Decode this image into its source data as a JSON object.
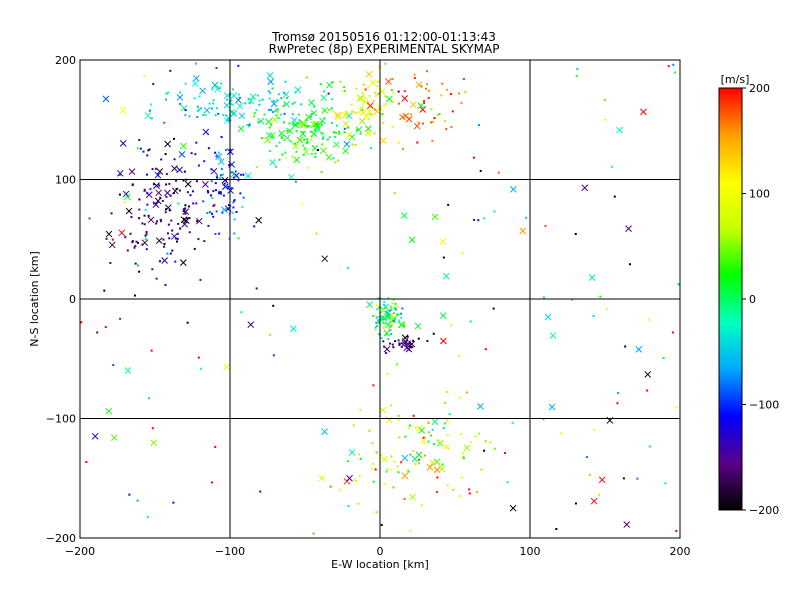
{
  "chart_data": {
    "type": "scatter",
    "title": "Tromsø 20150516 01:12:00-01:13:43",
    "subtitle": "RwPretec (8p) EXPERIMENTAL SKYMAP",
    "xlabel": "E-W location [km]",
    "ylabel": "N-S location [km]",
    "xlim": [
      -200,
      200
    ],
    "ylim": [
      -200,
      200
    ],
    "x_ticks": [
      -200,
      -100,
      0,
      100,
      200
    ],
    "y_ticks": [
      -200,
      -100,
      0,
      100,
      200
    ],
    "grid": true,
    "colorbar": {
      "label": "[m/s]",
      "range": [
        -200,
        200
      ],
      "ticks": [
        -200,
        -100,
        0,
        100,
        200
      ],
      "colors": [
        "#000000",
        "#5a0087",
        "#0000ff",
        "#00a8ff",
        "#00ffc0",
        "#00ff00",
        "#c8ff00",
        "#ffff00",
        "#ffa000",
        "#ff0000"
      ]
    },
    "markers": [
      "dot",
      "x"
    ],
    "clusters": [
      {
        "cx": -95,
        "cy": 165,
        "rx": 40,
        "ry": 18,
        "n": 110,
        "v": -40,
        "vs": 25
      },
      {
        "cx": -50,
        "cy": 140,
        "rx": 30,
        "ry": 22,
        "n": 150,
        "v": 20,
        "vs": 25
      },
      {
        "cx": -10,
        "cy": 160,
        "rx": 18,
        "ry": 25,
        "n": 80,
        "v": 100,
        "vs": 40
      },
      {
        "cx": 30,
        "cy": 160,
        "rx": 25,
        "ry": 25,
        "n": 45,
        "v": 175,
        "vs": 20
      },
      {
        "cx": -145,
        "cy": 80,
        "rx": 28,
        "ry": 45,
        "n": 160,
        "v": -160,
        "vs": 30
      },
      {
        "cx": -105,
        "cy": 95,
        "rx": 15,
        "ry": 30,
        "n": 75,
        "v": -100,
        "vs": 30
      },
      {
        "cx": 5,
        "cy": -15,
        "rx": 10,
        "ry": 12,
        "n": 90,
        "v": 0,
        "vs": 50
      },
      {
        "cx": 15,
        "cy": -38,
        "rx": 10,
        "ry": 7,
        "n": 30,
        "v": -170,
        "vs": 20
      },
      {
        "cx": 20,
        "cy": -130,
        "rx": 45,
        "ry": 40,
        "n": 110,
        "v": 80,
        "vs": 70
      },
      {
        "cx": 0,
        "cy": 0,
        "rx": 200,
        "ry": 200,
        "n": 180,
        "v": 0,
        "vs": 170
      }
    ]
  }
}
